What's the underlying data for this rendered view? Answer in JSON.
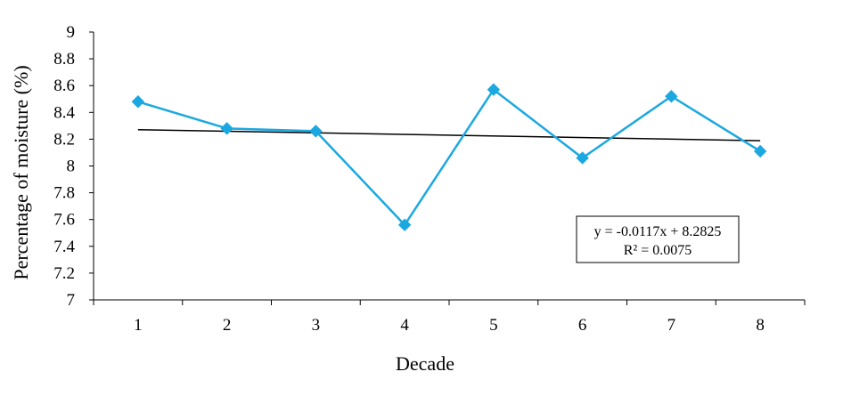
{
  "chart_data": {
    "type": "line",
    "title": "",
    "xlabel": "Decade",
    "ylabel": "Percentage of moisture (%)",
    "x": [
      1,
      2,
      3,
      4,
      5,
      6,
      7,
      8
    ],
    "x_tick_labels": [
      "1",
      "2",
      "3",
      "4",
      "5",
      "6",
      "7",
      "8"
    ],
    "y_tick_labels": [
      "7",
      "7.2",
      "7.4",
      "7.6",
      "7.8",
      "8",
      "8.2",
      "8.4",
      "8.6",
      "8.8",
      "9"
    ],
    "ylim": [
      7,
      9
    ],
    "series": [
      {
        "values": [
          8.48,
          8.28,
          8.26,
          7.56,
          8.57,
          8.06,
          8.52,
          8.11
        ],
        "color": "#1BA8E0",
        "marker": "diamond"
      }
    ],
    "trendline": {
      "type": "linear",
      "slope": -0.0117,
      "intercept": 8.2825,
      "color": "#000000",
      "equation_label": "y = -0.0117x + 8.2825",
      "r2_label": "R² = 0.0075"
    },
    "grid": false,
    "legend": "none"
  }
}
